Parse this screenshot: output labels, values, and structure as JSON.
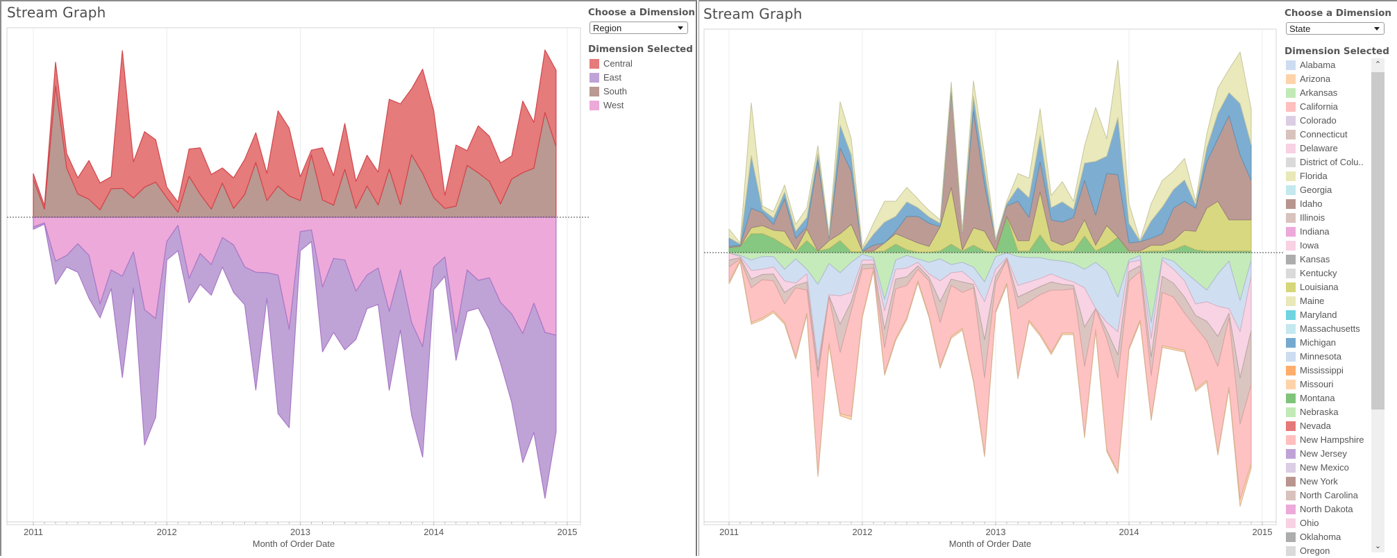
{
  "left": {
    "title": "Stream Graph",
    "control_label": "Choose a Dimension",
    "selected_dimension": "Region",
    "legend_title": "Dimension Selected",
    "legend": [
      {
        "label": "Central",
        "color": "#e57b7b"
      },
      {
        "label": "East",
        "color": "#bfa3d6"
      },
      {
        "label": "South",
        "color": "#b99992"
      },
      {
        "label": "West",
        "color": "#eda9d9"
      }
    ]
  },
  "right": {
    "title": "Stream Graph",
    "control_label": "Choose a Dimension",
    "selected_dimension": "State",
    "legend_title": "Dimension Selected",
    "legend": [
      {
        "label": "Alabama",
        "color": "#cddcf1"
      },
      {
        "label": "Arizona",
        "color": "#ffd3aa"
      },
      {
        "label": "Arkansas",
        "color": "#c2eab6"
      },
      {
        "label": "California",
        "color": "#ffbfbf"
      },
      {
        "label": "Colorado",
        "color": "#dbcde4"
      },
      {
        "label": "Connecticut",
        "color": "#d9c2bd"
      },
      {
        "label": "Delaware",
        "color": "#f8d1e3"
      },
      {
        "label": "District of Colu..",
        "color": "#dadada"
      },
      {
        "label": "Florida",
        "color": "#e9e8b8"
      },
      {
        "label": "Georgia",
        "color": "#c3e8ee"
      },
      {
        "label": "Idaho",
        "color": "#b8968f"
      },
      {
        "label": "Illinois",
        "color": "#d9c2bd"
      },
      {
        "label": "Indiana",
        "color": "#eda9d9"
      },
      {
        "label": "Iowa",
        "color": "#f8d1e3"
      },
      {
        "label": "Kansas",
        "color": "#adadad"
      },
      {
        "label": "Kentucky",
        "color": "#dadada"
      },
      {
        "label": "Louisiana",
        "color": "#d6d67a"
      },
      {
        "label": "Maine",
        "color": "#e9e8b8"
      },
      {
        "label": "Maryland",
        "color": "#6fd4e0"
      },
      {
        "label": "Massachusetts",
        "color": "#c3e8ee"
      },
      {
        "label": "Michigan",
        "color": "#76a9cf"
      },
      {
        "label": "Minnesota",
        "color": "#cddcf1"
      },
      {
        "label": "Mississippi",
        "color": "#ffad6b"
      },
      {
        "label": "Missouri",
        "color": "#ffd3aa"
      },
      {
        "label": "Montana",
        "color": "#7fc47a"
      },
      {
        "label": "Nebraska",
        "color": "#c2eab6"
      },
      {
        "label": "Nevada",
        "color": "#e57878"
      },
      {
        "label": "New Hampshire",
        "color": "#ffbfbf"
      },
      {
        "label": "New Jersey",
        "color": "#bfa3d6"
      },
      {
        "label": "New Mexico",
        "color": "#dbcde4"
      },
      {
        "label": "New York",
        "color": "#b8968f"
      },
      {
        "label": "North Carolina",
        "color": "#d9c2bd"
      },
      {
        "label": "North Dakota",
        "color": "#eda9d9"
      },
      {
        "label": "Ohio",
        "color": "#f8d1e3"
      },
      {
        "label": "Oklahoma",
        "color": "#adadad"
      },
      {
        "label": "Oregon",
        "color": "#dadada"
      }
    ]
  },
  "chart_data": [
    {
      "type": "area",
      "subtype": "stream (stacked, centered baseline)",
      "title": "Stream Graph",
      "xlabel": "Month of Order Date",
      "ylabel": "",
      "x_ticks": [
        "2011",
        "2012",
        "2013",
        "2014",
        "2015"
      ],
      "x_start": "2011-01",
      "x_step": "month",
      "grid": "vertical at years",
      "legend_position": "right",
      "above_baseline": [
        "South",
        "Central"
      ],
      "below_baseline": [
        "West",
        "East"
      ],
      "series": [
        {
          "name": "South",
          "color": "#b99992",
          "values": [
            4950,
            1050,
            17040,
            6360,
            3000,
            2340,
            960,
            3690,
            3750,
            2490,
            3900,
            4560,
            2550,
            660,
            5310,
            3000,
            1050,
            4440,
            1140,
            2940,
            7110,
            2160,
            4050,
            2760,
            2160,
            8100,
            2250,
            1560,
            6210,
            1140,
            4050,
            1590,
            6240,
            1650,
            8100,
            5700,
            2550,
            1140,
            1440,
            6720,
            5760,
            4650,
            1740,
            4950,
            5790,
            6360,
            13590,
            9150
          ]
        },
        {
          "name": "Central",
          "color": "#e57b7b",
          "values": [
            690,
            450,
            3060,
            1890,
            2100,
            5010,
            3480,
            1560,
            17850,
            4710,
            7200,
            5490,
            1350,
            1290,
            3540,
            6000,
            4500,
            1950,
            3960,
            4560,
            3840,
            3540,
            9750,
            8790,
            3090,
            600,
            6750,
            3840,
            5940,
            3510,
            3990,
            4260,
            9060,
            13050,
            8550,
            13500,
            11250,
            1710,
            7920,
            1920,
            6090,
            5850,
            5310,
            3000,
            9270,
            5940,
            8100,
            9900
          ]
        },
        {
          "name": "West",
          "color": "#eda9d9",
          "values": [
            1260,
            750,
            5700,
            4950,
            3450,
            4950,
            11250,
            6840,
            7650,
            4500,
            12000,
            13140,
            3150,
            1050,
            7950,
            4710,
            6150,
            2640,
            3600,
            6450,
            7140,
            7200,
            7500,
            14550,
            1860,
            1650,
            9060,
            5340,
            5550,
            9600,
            7500,
            6600,
            12210,
            6840,
            13650,
            16800,
            6450,
            5160,
            15000,
            6840,
            8190,
            7860,
            11040,
            12540,
            15090,
            11160,
            14940,
            15300
          ]
        },
        {
          "name": "East",
          "color": "#bfa3d6",
          "values": [
            300,
            150,
            3000,
            1500,
            3690,
            5550,
            1800,
            2400,
            13140,
            4650,
            17550,
            12810,
            2400,
            3300,
            3150,
            3990,
            3960,
            3810,
            6150,
            4890,
            15270,
            3300,
            17940,
            12750,
            2490,
            1500,
            8400,
            9600,
            11640,
            6240,
            4350,
            4710,
            10230,
            7770,
            12000,
            14310,
            2940,
            2490,
            3540,
            5370,
            3600,
            6690,
            7860,
            11460,
            16710,
            16740,
            21510,
            12540
          ]
        }
      ]
    },
    {
      "type": "area",
      "subtype": "stream (stacked, centered baseline)",
      "title": "Stream Graph",
      "xlabel": "Month of Order Date",
      "ylabel": "",
      "x_ticks": [
        "2011",
        "2012",
        "2013",
        "2014",
        "2015"
      ],
      "x_start": "2011-01",
      "x_step": "month",
      "grid": "vertical at years",
      "legend_position": "right",
      "above_baseline": [
        "Montana",
        "Louisiana",
        "New York",
        "Michigan",
        "Maine"
      ],
      "below_baseline": [
        "Nebraska",
        "Minnesota",
        "Iowa",
        "Connecticut",
        "California",
        "Missouri"
      ],
      "series": [
        {
          "name": "Montana",
          "color": "#7fc47a",
          "values": [
            660,
            810,
            2460,
            2460,
            1860,
            960,
            120,
            1560,
            210,
            510,
            1560,
            120,
            120,
            120,
            210,
            1110,
            360,
            60,
            60,
            210,
            1110,
            210,
            960,
            210,
            60,
            4560,
            210,
            210,
            2310,
            210,
            210,
            210,
            2160,
            210,
            960,
            2010,
            60,
            60,
            210,
            210,
            360,
            960,
            360,
            210,
            210,
            210,
            210,
            210
          ]
        },
        {
          "name": "Louisiana",
          "color": "#d6d67a",
          "values": [
            0,
            0,
            750,
            1050,
            1050,
            1800,
            240,
            1500,
            0,
            1050,
            900,
            3540,
            90,
            90,
            1050,
            1350,
            1500,
            1200,
            750,
            3150,
            7350,
            150,
            2250,
            2550,
            150,
            150,
            1350,
            1350,
            5550,
            1350,
            750,
            1350,
            2100,
            750,
            2550,
            0,
            150,
            150,
            750,
            750,
            1200,
            1950,
            2400,
            5550,
            6450,
            4050,
            4050,
            4050
          ]
        },
        {
          "name": "New York",
          "color": "#b8968f",
          "values": [
            150,
            150,
            2550,
            1650,
            750,
            4200,
            1500,
            300,
            11700,
            300,
            11100,
            6900,
            0,
            750,
            0,
            300,
            2850,
            3450,
            3000,
            0,
            12600,
            2250,
            15150,
            6000,
            1350,
            1350,
            5100,
            3000,
            3900,
            2700,
            3000,
            3000,
            5100,
            3900,
            6750,
            8100,
            1050,
            1200,
            900,
            1500,
            4200,
            3750,
            3000,
            6000,
            8100,
            13500,
            8400,
            5100
          ]
        },
        {
          "name": "Michigan",
          "color": "#76a9cf",
          "values": [
            1125,
            150,
            6825,
            450,
            825,
            900,
            900,
            1200,
            975,
            300,
            3000,
            2100,
            225,
            1425,
            2700,
            1950,
            1875,
            1125,
            825,
            450,
            525,
            75,
            1950,
            1950,
            75,
            300,
            1800,
            2550,
            3450,
            1575,
            2625,
            1050,
            2250,
            6975,
            2250,
            7425,
            2550,
            75,
            2250,
            3450,
            2400,
            2775,
            450,
            1800,
            3300,
            3000,
            6675,
            4650
          ]
        },
        {
          "name": "Maine",
          "color": "#e9e8b8",
          "values": [
            1125,
            150,
            6825,
            450,
            825,
            900,
            900,
            1200,
            975,
            300,
            3000,
            2100,
            225,
            1425,
            2700,
            1950,
            1875,
            1125,
            825,
            450,
            525,
            75,
            1950,
            1950,
            75,
            300,
            1800,
            2550,
            3450,
            1575,
            2625,
            1050,
            2250,
            6975,
            2250,
            7425,
            2550,
            75,
            2250,
            3450,
            2400,
            2775,
            450,
            1800,
            3300,
            3000,
            6675,
            4650
          ]
        },
        {
          "name": "Nebraska",
          "color": "#c2eab6",
          "values": [
            60,
            360,
            960,
            510,
            510,
            2160,
            810,
            2160,
            4110,
            1410,
            2610,
            1260,
            210,
            660,
            6060,
            960,
            360,
            810,
            1260,
            810,
            1560,
            1260,
            1860,
            3810,
            510,
            60,
            510,
            660,
            660,
            960,
            1110,
            1410,
            2160,
            1260,
            2460,
            5760,
            960,
            360,
            9060,
            660,
            1110,
            2460,
            3660,
            4860,
            2760,
            1110,
            6210,
            960
          ]
        },
        {
          "name": "Minnesota",
          "color": "#cddcf1",
          "values": [
            0,
            150,
            1350,
            1650,
            1350,
            1500,
            3150,
            600,
            10290,
            4050,
            3000,
            3900,
            750,
            300,
            1500,
            1200,
            1650,
            450,
            1500,
            2850,
            1050,
            1200,
            1800,
            2550,
            1650,
            600,
            3750,
            3150,
            2700,
            1800,
            2250,
            2400,
            2400,
            6000,
            6600,
            4500,
            300,
            600,
            2100,
            300,
            1050,
            1200,
            3000,
            1500,
            4200,
            6150,
            4050,
            2100
          ]
        },
        {
          "name": "Iowa",
          "color": "#f8d1e3",
          "values": [
            900,
            150,
            1125,
            675,
            900,
            1500,
            300,
            1050,
            900,
            150,
            3675,
            1200,
            600,
            525,
            2400,
            1275,
            1125,
            450,
            450,
            2700,
            825,
            1350,
            450,
            4950,
            900,
            150,
            1500,
            1275,
            1050,
            1050,
            750,
            450,
            5100,
            0,
            1050,
            3000,
            1200,
            750,
            2400,
            2100,
            1800,
            2100,
            1500,
            2550,
            3900,
            600,
            6000,
            7050
          ]
        },
        {
          "name": "Connecticut",
          "color": "#d9c2bd",
          "values": [
            900,
            150,
            1125,
            675,
            900,
            1500,
            300,
            1050,
            900,
            150,
            3675,
            1200,
            600,
            525,
            2400,
            1275,
            1125,
            450,
            450,
            2700,
            825,
            1350,
            450,
            4950,
            900,
            150,
            1500,
            1275,
            1050,
            1050,
            750,
            450,
            5100,
            0,
            1050,
            3000,
            1200,
            750,
            2400,
            2100,
            1800,
            2100,
            1500,
            2550,
            3900,
            600,
            6000,
            7050
          ]
        },
        {
          "name": "California",
          "color": "#ffbfbf",
          "values": [
            1950,
            150,
            4500,
            4950,
            3900,
            2400,
            9000,
            3000,
            12600,
            6000,
            7950,
            13650,
            6000,
            150,
            3300,
            6450,
            4200,
            1500,
            4500,
            5700,
            6600,
            4650,
            12000,
            9900,
            3600,
            3000,
            8850,
            2400,
            5100,
            8100,
            5550,
            5700,
            9000,
            2700,
            14400,
            12150,
            8700,
            6300,
            5550,
            6900,
            6600,
            4800,
            8100,
            5100,
            11250,
            9000,
            9750,
            10200
          ]
        },
        {
          "name": "Missouri",
          "color": "#ffd3aa",
          "values": [
            240,
            240,
            240,
            240,
            240,
            240,
            240,
            240,
            240,
            240,
            240,
            450,
            240,
            240,
            240,
            240,
            240,
            240,
            240,
            240,
            240,
            240,
            240,
            300,
            240,
            240,
            240,
            240,
            240,
            240,
            240,
            240,
            240,
            240,
            240,
            240,
            240,
            240,
            240,
            240,
            240,
            240,
            240,
            240,
            240,
            240,
            900,
            600
          ]
        }
      ]
    }
  ]
}
